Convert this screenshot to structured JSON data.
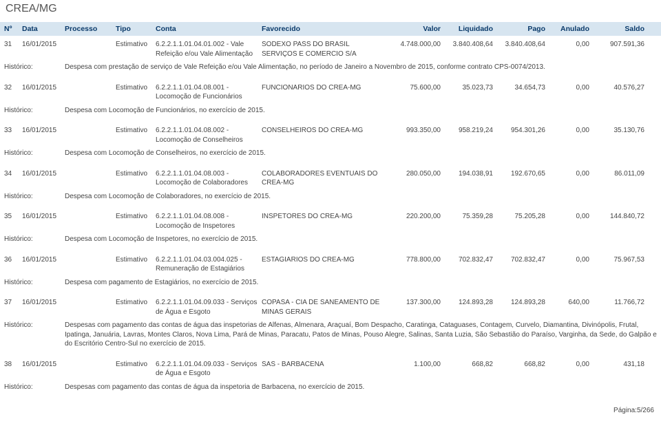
{
  "page_title": "CREA/MG",
  "columns": {
    "no": "Nº",
    "data": "Data",
    "processo": "Processo",
    "tipo": "Tipo",
    "conta": "Conta",
    "favorecido": "Favorecido",
    "valor": "Valor",
    "liquidado": "Liquidado",
    "pago": "Pago",
    "anulado": "Anulado",
    "saldo": "Saldo"
  },
  "hist_label": "Histórico:",
  "rows": [
    {
      "no": "31",
      "data": "16/01/2015",
      "processo": "",
      "tipo": "Estimativo",
      "conta": "6.2.2.1.1.01.04.01.002 - Vale Refeição e/ou Vale Alimentação",
      "favorecido": "SODEXO PASS DO BRASIL SERVIÇOS E COMERCIO S/A",
      "valor": "4.748.000,00",
      "liquidado": "3.840.408,64",
      "pago": "3.840.408,64",
      "anulado": "0,00",
      "saldo": "907.591,36",
      "historico": "Despesa com prestação de serviço de Vale Refeição e/ou Vale Alimentação, no período de Janeiro a Novembro de 2015, conforme contrato CPS-0074/2013."
    },
    {
      "no": "32",
      "data": "16/01/2015",
      "processo": "",
      "tipo": "Estimativo",
      "conta": "6.2.2.1.1.01.04.08.001 - Locomoção de Funcionários",
      "favorecido": "FUNCIONARIOS DO CREA-MG",
      "valor": "75.600,00",
      "liquidado": "35.023,73",
      "pago": "34.654,73",
      "anulado": "0,00",
      "saldo": "40.576,27",
      "historico": "Despesa com Locomoção de Funcionários, no exercício de 2015."
    },
    {
      "no": "33",
      "data": "16/01/2015",
      "processo": "",
      "tipo": "Estimativo",
      "conta": "6.2.2.1.1.01.04.08.002 - Locomoção de Conselheiros",
      "favorecido": "CONSELHEIROS DO CREA-MG",
      "valor": "993.350,00",
      "liquidado": "958.219,24",
      "pago": "954.301,26",
      "anulado": "0,00",
      "saldo": "35.130,76",
      "historico": "Despesa com Locomoção de Conselheiros, no exercício de 2015."
    },
    {
      "no": "34",
      "data": "16/01/2015",
      "processo": "",
      "tipo": "Estimativo",
      "conta": "6.2.2.1.1.01.04.08.003 - Locomoção de Colaboradores",
      "favorecido": "COLABORADORES EVENTUAIS DO CREA-MG",
      "valor": "280.050,00",
      "liquidado": "194.038,91",
      "pago": "192.670,65",
      "anulado": "0,00",
      "saldo": "86.011,09",
      "historico": "Despesa com Locomoção de Colaboradores, no exercício de 2015."
    },
    {
      "no": "35",
      "data": "16/01/2015",
      "processo": "",
      "tipo": "Estimativo",
      "conta": "6.2.2.1.1.01.04.08.008 - Locomoção de Inspetores",
      "favorecido": "INSPETORES DO CREA-MG",
      "valor": "220.200,00",
      "liquidado": "75.359,28",
      "pago": "75.205,28",
      "anulado": "0,00",
      "saldo": "144.840,72",
      "historico": "Despesa com Locomoção de Inspetores, no exercício de 2015."
    },
    {
      "no": "36",
      "data": "16/01/2015",
      "processo": "",
      "tipo": "Estimativo",
      "conta": "6.2.2.1.1.01.04.03.004.025 - Remuneração de Estagiários",
      "favorecido": "ESTAGIARIOS DO CREA-MG",
      "valor": "778.800,00",
      "liquidado": "702.832,47",
      "pago": "702.832,47",
      "anulado": "0,00",
      "saldo": "75.967,53",
      "historico": "Despesa com pagamento de Estagiários, no exercício de 2015."
    },
    {
      "no": "37",
      "data": "16/01/2015",
      "processo": "",
      "tipo": "Estimativo",
      "conta": "6.2.2.1.1.01.04.09.033 - Serviços de Água e Esgoto",
      "favorecido": "COPASA - CIA DE SANEAMENTO DE MINAS GERAIS",
      "valor": "137.300,00",
      "liquidado": "124.893,28",
      "pago": "124.893,28",
      "anulado": "640,00",
      "saldo": "11.766,72",
      "historico": "Despesas com pagamento das contas de água das inspetorias de Alfenas, Almenara, Araçuaí, Bom Despacho, Caratinga, Cataguases, Contagem, Curvelo, Diamantina, Divinópolis, Frutal, Ipatinga, Januária, Lavras, Montes Claros, Nova Lima, Pará de Minas, Paracatu, Patos de Minas, Pouso Alegre, Salinas, Santa Luzia, São Sebastião do Paraíso, Varginha, da Sede, do Galpão e do Escritório Centro-Sul no exercício de 2015."
    },
    {
      "no": "38",
      "data": "16/01/2015",
      "processo": "",
      "tipo": "Estimativo",
      "conta": "6.2.2.1.1.01.04.09.033 - Serviços de Água e Esgoto",
      "favorecido": "SAS - BARBACENA",
      "valor": "1.100,00",
      "liquidado": "668,82",
      "pago": "668,82",
      "anulado": "0,00",
      "saldo": "431,18",
      "historico": "Despesas com pagamento das contas de água da inspetoria de Barbacena, no exercício de 2015."
    }
  ],
  "footer": "Página:5/266"
}
